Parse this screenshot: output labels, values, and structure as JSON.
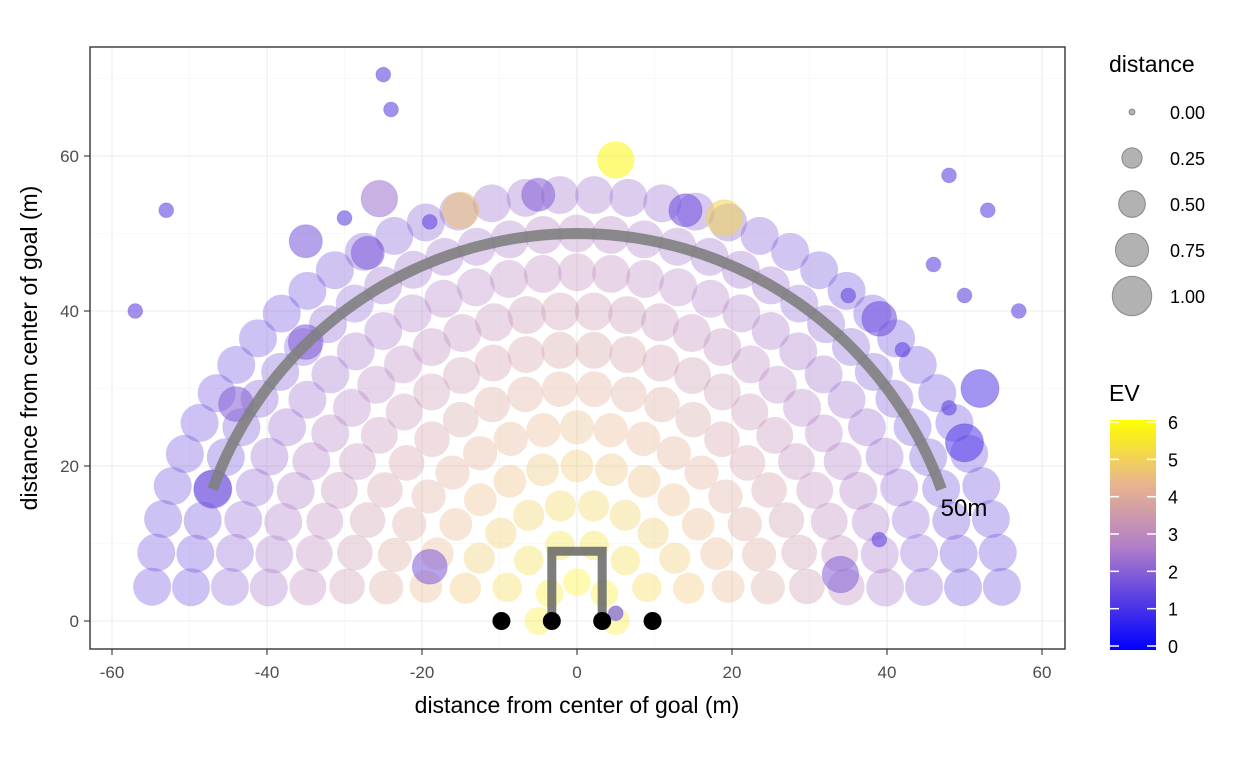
{
  "chart_data": {
    "type": "scatter",
    "title": "",
    "xlabel": "distance from center of goal (m)",
    "ylabel": "distance from center of goal (m)",
    "xlim": [
      -60,
      60
    ],
    "ylim": [
      0,
      70
    ],
    "x_ticks": [
      "-60",
      "-40",
      "-20",
      "0",
      "20",
      "40",
      "60"
    ],
    "y_ticks": [
      "0",
      "20",
      "40",
      "60"
    ],
    "grid": true,
    "legend_position": "right",
    "size_legend": {
      "title": "distance",
      "entries": [
        "0.00",
        "0.25",
        "0.50",
        "0.75",
        "1.00"
      ]
    },
    "color_legend": {
      "title": "EV",
      "ticks": [
        "0",
        "1",
        "2",
        "3",
        "4",
        "5",
        "6"
      ],
      "low_color": "#0000ff",
      "mid_color": "#b27fc8",
      "high_color": "#ffff00",
      "range": [
        0,
        6
      ]
    },
    "annotation": "50m",
    "arc_radius": 50,
    "goal_posts": [
      {
        "x": -9.75,
        "y": 0
      },
      {
        "x": -3.25,
        "y": 0
      },
      {
        "x": 3.25,
        "y": 0
      },
      {
        "x": 9.75,
        "y": 0
      }
    ],
    "goal_frame": {
      "left": -3.25,
      "right": 3.25,
      "height": 9
    },
    "grid_points": {
      "radii": [
        5,
        10,
        15,
        20,
        25,
        30,
        35,
        40,
        45,
        50,
        55
      ],
      "center_value": 6,
      "falloff_per_meter": 0.075,
      "max_radius": 55
    },
    "outlier_points": [
      {
        "x": -25,
        "y": 70.5,
        "size": 0.05,
        "ev": 1.5
      },
      {
        "x": -24,
        "y": 66,
        "size": 0.05,
        "ev": 1.5
      },
      {
        "x": -53,
        "y": 53,
        "size": 0.05,
        "ev": 1.5
      },
      {
        "x": -57,
        "y": 40,
        "size": 0.05,
        "ev": 1.5
      },
      {
        "x": -30,
        "y": 52,
        "size": 0.05,
        "ev": 1.5
      },
      {
        "x": -19,
        "y": 51.5,
        "size": 0.05,
        "ev": 1.5
      },
      {
        "x": 48,
        "y": 57.5,
        "size": 0.05,
        "ev": 1.5
      },
      {
        "x": 53,
        "y": 53,
        "size": 0.05,
        "ev": 1.5
      },
      {
        "x": 46,
        "y": 46,
        "size": 0.05,
        "ev": 1.5
      },
      {
        "x": 50,
        "y": 42,
        "size": 0.05,
        "ev": 1.5
      },
      {
        "x": 57,
        "y": 40,
        "size": 0.05,
        "ev": 1.5
      },
      {
        "x": 35,
        "y": 42,
        "size": 0.05,
        "ev": 1.5
      },
      {
        "x": 42,
        "y": 35,
        "size": 0.05,
        "ev": 1.5
      },
      {
        "x": 48,
        "y": 27.5,
        "size": 0.05,
        "ev": 1.5
      },
      {
        "x": 39,
        "y": 10.5,
        "size": 0.05,
        "ev": 1.5
      },
      {
        "x": 5,
        "y": 1,
        "size": 0.05,
        "ev": 1.5
      },
      {
        "x": 5,
        "y": 59.5,
        "size": 0.9,
        "ev": 5.8
      },
      {
        "x": -25.5,
        "y": 54.5,
        "size": 0.9,
        "ev": 2.4
      },
      {
        "x": -5,
        "y": 55,
        "size": 0.7,
        "ev": 2.0
      },
      {
        "x": 14,
        "y": 53,
        "size": 0.7,
        "ev": 1.6
      },
      {
        "x": 19,
        "y": 52,
        "size": 0.9,
        "ev": 5.0
      },
      {
        "x": -15,
        "y": 53,
        "size": 0.9,
        "ev": 4.6
      },
      {
        "x": -35,
        "y": 49,
        "size": 0.7,
        "ev": 1.8
      },
      {
        "x": -27,
        "y": 47.5,
        "size": 0.7,
        "ev": 1.9
      },
      {
        "x": 39,
        "y": 39,
        "size": 0.8,
        "ev": 1.6
      },
      {
        "x": 52,
        "y": 30,
        "size": 1.0,
        "ev": 1.3
      },
      {
        "x": 50,
        "y": 23,
        "size": 1.0,
        "ev": 1.2
      },
      {
        "x": -47,
        "y": 17,
        "size": 1.0,
        "ev": 1.6
      },
      {
        "x": 34,
        "y": 6,
        "size": 0.9,
        "ev": 2.0
      },
      {
        "x": -19,
        "y": 7,
        "size": 0.8,
        "ev": 1.9
      },
      {
        "x": -35,
        "y": 36,
        "size": 0.8,
        "ev": 1.9
      },
      {
        "x": -44,
        "y": 28,
        "size": 0.8,
        "ev": 2.0
      }
    ]
  }
}
